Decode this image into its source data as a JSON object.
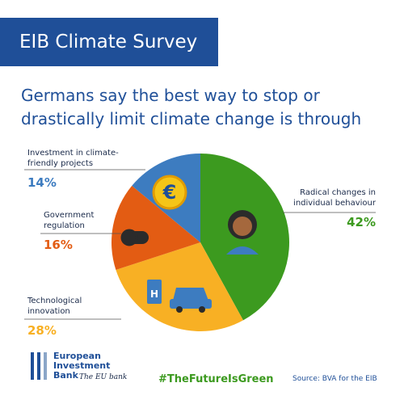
{
  "header": {
    "title": "EIB Climate Survey"
  },
  "chart_data": {
    "type": "pie",
    "subtitle": "Germans say the best way to stop or drastically limit climate change is through",
    "categories": [
      "Radical changes in individual behaviour",
      "Technological innovation",
      "Government regulation",
      "Investment in climate-friendly projects"
    ],
    "values": [
      42,
      28,
      16,
      14
    ],
    "value_labels": [
      "42%",
      "28%",
      "16%",
      "14%"
    ],
    "colors": [
      "#3c9a1f",
      "#f8b024",
      "#e35c13",
      "#3d7cc0"
    ]
  },
  "footer": {
    "logo_lines": [
      "European",
      "Investment",
      "Bank"
    ],
    "tagline": "The EU bank",
    "hashtag": "#TheFutureIsGreen",
    "source": "Source: BVA for the EIB"
  }
}
